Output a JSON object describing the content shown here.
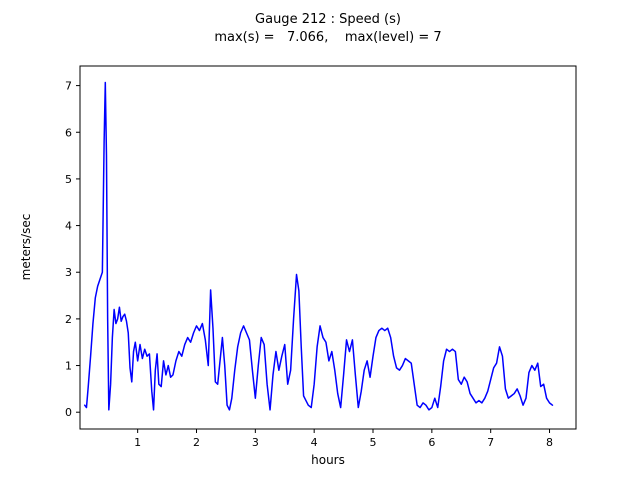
{
  "figure": {
    "title_line1": "Gauge 212 : Speed (s)",
    "title_line2": "max(s) =   7.066,    max(level) = 7",
    "xlabel": "hours",
    "ylabel": "meters/sec",
    "background_color": "#ffffff",
    "axis_color": "#000000",
    "line_color": "#0000ff"
  },
  "chart_data": {
    "type": "line",
    "title": "Gauge 212 : Speed (s)",
    "subtitle": "max(s) = 7.066, max(level) = 7",
    "xlabel": "hours",
    "ylabel": "meters/sec",
    "max_s": 7.066,
    "max_level": 7,
    "xlim": [
      0.02,
      8.45
    ],
    "ylim": [
      -0.36,
      7.42
    ],
    "xticks": [
      1,
      2,
      3,
      4,
      5,
      6,
      7,
      8
    ],
    "yticks": [
      0,
      1,
      2,
      3,
      4,
      5,
      6,
      7
    ],
    "grid": false,
    "legend": false,
    "series": [
      {
        "name": "speed",
        "color": "#0000ff",
        "x": [
          0.1,
          0.13,
          0.16,
          0.2,
          0.24,
          0.28,
          0.32,
          0.36,
          0.4,
          0.43,
          0.45,
          0.47,
          0.49,
          0.51,
          0.54,
          0.57,
          0.6,
          0.63,
          0.66,
          0.69,
          0.72,
          0.75,
          0.78,
          0.81,
          0.84,
          0.87,
          0.9,
          0.93,
          0.96,
          1.0,
          1.04,
          1.08,
          1.12,
          1.16,
          1.2,
          1.24,
          1.27,
          1.3,
          1.33,
          1.36,
          1.4,
          1.44,
          1.48,
          1.52,
          1.56,
          1.6,
          1.65,
          1.7,
          1.75,
          1.8,
          1.85,
          1.9,
          1.95,
          2.0,
          2.05,
          2.1,
          2.15,
          2.2,
          2.24,
          2.28,
          2.32,
          2.36,
          2.4,
          2.44,
          2.48,
          2.52,
          2.56,
          2.6,
          2.65,
          2.7,
          2.75,
          2.8,
          2.85,
          2.9,
          2.95,
          3.0,
          3.05,
          3.1,
          3.15,
          3.2,
          3.25,
          3.3,
          3.35,
          3.4,
          3.45,
          3.5,
          3.55,
          3.6,
          3.65,
          3.7,
          3.74,
          3.78,
          3.82,
          3.86,
          3.9,
          3.95,
          4.0,
          4.05,
          4.1,
          4.15,
          4.2,
          4.25,
          4.3,
          4.35,
          4.4,
          4.45,
          4.5,
          4.55,
          4.6,
          4.65,
          4.7,
          4.75,
          4.8,
          4.85,
          4.9,
          4.95,
          5.0,
          5.05,
          5.1,
          5.15,
          5.2,
          5.25,
          5.3,
          5.35,
          5.4,
          5.45,
          5.5,
          5.55,
          5.6,
          5.65,
          5.7,
          5.75,
          5.8,
          5.85,
          5.9,
          5.95,
          6.0,
          6.05,
          6.1,
          6.15,
          6.2,
          6.25,
          6.3,
          6.35,
          6.4,
          6.45,
          6.5,
          6.55,
          6.6,
          6.65,
          6.7,
          6.75,
          6.8,
          6.85,
          6.9,
          6.95,
          7.0,
          7.05,
          7.1,
          7.15,
          7.2,
          7.25,
          7.3,
          7.35,
          7.4,
          7.45,
          7.5,
          7.55,
          7.6,
          7.65,
          7.7,
          7.75,
          7.8,
          7.85,
          7.9,
          7.95,
          8.0,
          8.05
        ],
        "y": [
          0.15,
          0.1,
          0.55,
          1.2,
          1.9,
          2.45,
          2.7,
          2.85,
          3.0,
          5.8,
          7.066,
          5.5,
          2.0,
          0.05,
          0.6,
          1.6,
          2.2,
          1.9,
          2.0,
          2.25,
          1.95,
          2.05,
          2.1,
          1.95,
          1.7,
          0.95,
          0.65,
          1.3,
          1.5,
          1.1,
          1.45,
          1.15,
          1.35,
          1.2,
          1.25,
          0.45,
          0.05,
          0.9,
          1.25,
          0.6,
          0.55,
          1.1,
          0.8,
          1.0,
          0.75,
          0.8,
          1.1,
          1.3,
          1.2,
          1.45,
          1.6,
          1.5,
          1.7,
          1.85,
          1.75,
          1.9,
          1.55,
          1.0,
          2.62,
          1.8,
          0.65,
          0.6,
          1.1,
          1.6,
          1.0,
          0.15,
          0.05,
          0.3,
          0.9,
          1.4,
          1.7,
          1.85,
          1.7,
          1.55,
          0.9,
          0.3,
          1.0,
          1.6,
          1.45,
          0.6,
          0.05,
          0.8,
          1.3,
          0.9,
          1.2,
          1.45,
          0.6,
          0.9,
          2.0,
          2.95,
          2.6,
          1.4,
          0.35,
          0.25,
          0.15,
          0.1,
          0.6,
          1.4,
          1.85,
          1.6,
          1.5,
          1.1,
          1.3,
          0.9,
          0.4,
          0.1,
          0.8,
          1.55,
          1.3,
          1.55,
          0.8,
          0.1,
          0.45,
          0.9,
          1.1,
          0.75,
          1.2,
          1.6,
          1.75,
          1.8,
          1.75,
          1.8,
          1.6,
          1.2,
          0.95,
          0.9,
          1.0,
          1.15,
          1.1,
          1.05,
          0.6,
          0.15,
          0.1,
          0.2,
          0.15,
          0.05,
          0.1,
          0.3,
          0.1,
          0.55,
          1.1,
          1.35,
          1.3,
          1.35,
          1.3,
          0.7,
          0.6,
          0.75,
          0.65,
          0.4,
          0.3,
          0.2,
          0.25,
          0.2,
          0.3,
          0.45,
          0.7,
          0.95,
          1.05,
          1.4,
          1.2,
          0.5,
          0.3,
          0.35,
          0.4,
          0.5,
          0.35,
          0.15,
          0.3,
          0.85,
          1.0,
          0.9,
          1.05,
          0.55,
          0.6,
          0.3,
          0.2,
          0.15
        ]
      }
    ]
  }
}
